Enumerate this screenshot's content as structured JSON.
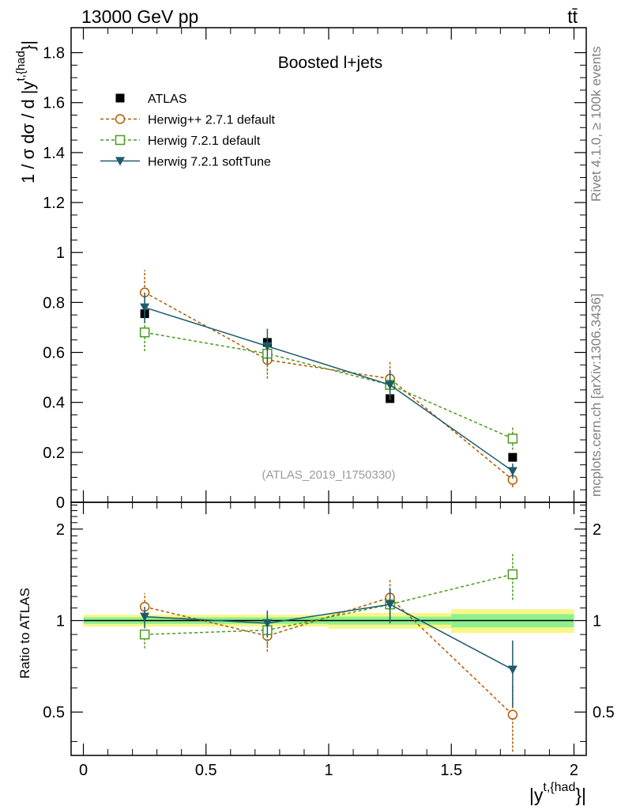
{
  "header": {
    "energy_label": "13000 GeV pp",
    "process_label": "tt̄"
  },
  "side_labels": {
    "rivet": "Rivet 4.1.0, ≥ 100k events",
    "site": "mcplots.cern.ch [arXiv:1306.3436]"
  },
  "chart_data": [
    {
      "type": "line",
      "panel": "main",
      "title": "Boosted l+jets",
      "analysis_label": "(ATLAS_2019_I1750330)",
      "xlabel_main": "|y",
      "xlabel_sup": "t,{had",
      "xlabel_end": "}|",
      "ylabel_main": "1 / σ dσ / d |y",
      "ylabel_sup": "t,{had",
      "ylabel_end": "}|",
      "xlim": [
        -0.05,
        2.05
      ],
      "ylim": [
        0,
        1.9
      ],
      "xticks": [
        0,
        0.5,
        1,
        1.5,
        2
      ],
      "xtick_labels": [
        "0",
        "0.5",
        "1",
        "1.5",
        "2"
      ],
      "yticks": [
        0,
        0.2,
        0.4,
        0.6,
        0.8,
        1,
        1.2,
        1.4,
        1.6,
        1.8
      ],
      "ytick_labels": [
        "0",
        "0.2",
        "0.4",
        "0.6",
        "0.8",
        "1",
        "1.2",
        "1.4",
        "1.6",
        "1.8"
      ],
      "bin_edges": [
        0,
        0.5,
        1,
        1.5,
        2
      ],
      "x": [
        0.25,
        0.75,
        1.25,
        1.75
      ],
      "series": [
        {
          "name": "ATLAS",
          "marker": "square-filled",
          "color": "#000000",
          "values": [
            0.755,
            0.64,
            0.415,
            0.18
          ],
          "errors": [
            0.02,
            0.02,
            0.015,
            0.01
          ]
        },
        {
          "name": "Herwig++ 2.7.1 default",
          "marker": "circle-open",
          "color": "#b05a00",
          "dashed": true,
          "values": [
            0.84,
            0.57,
            0.495,
            0.09
          ],
          "errors": [
            0.09,
            0.075,
            0.07,
            0.03
          ]
        },
        {
          "name": "Herwig 7.2.1 default",
          "marker": "square-open",
          "color": "#4a9a1e",
          "dashed": true,
          "values": [
            0.68,
            0.595,
            0.47,
            0.255
          ],
          "errors": [
            0.075,
            0.07,
            0.06,
            0.045
          ]
        },
        {
          "name": "Herwig 7.2.1 softTune",
          "marker": "triangle-down-filled",
          "color": "#1e5a6e",
          "dashed": false,
          "values": [
            0.78,
            0.625,
            0.47,
            0.125
          ],
          "errors": [
            0.06,
            0.07,
            0.06,
            0.03
          ]
        }
      ]
    },
    {
      "type": "line",
      "panel": "ratio",
      "ylabel": "Ratio to ATLAS",
      "xlabel_main": "|y",
      "xlabel_sup": "t,{had",
      "xlabel_end": "}|",
      "scale": "log",
      "ylim": [
        0.36,
        2.45
      ],
      "yticks": [
        0.5,
        1,
        2
      ],
      "ytick_labels": [
        "0.5",
        "1",
        "2"
      ],
      "xticks": [
        0,
        0.5,
        1,
        1.5,
        2
      ],
      "xtick_labels": [
        "0",
        "0.5",
        "1",
        "1.5",
        "2"
      ],
      "reference_band": {
        "edges": [
          0,
          0.5,
          1,
          1.5,
          2
        ],
        "inner": [
          0.025,
          0.025,
          0.03,
          0.05
        ],
        "outer": [
          0.045,
          0.045,
          0.06,
          0.09
        ],
        "inner_color": "#8ff08f",
        "outer_color": "#f7f78a"
      },
      "x": [
        0.25,
        0.75,
        1.25,
        1.75
      ],
      "series": [
        {
          "name": "Herwig++ 2.7.1 default",
          "marker": "circle-open",
          "color": "#b05a00",
          "dashed": true,
          "values": [
            1.11,
            0.89,
            1.19,
            0.49
          ],
          "errors": [
            0.12,
            0.1,
            0.17,
            0.12
          ]
        },
        {
          "name": "Herwig 7.2.1 default",
          "marker": "square-open",
          "color": "#4a9a1e",
          "dashed": true,
          "values": [
            0.9,
            0.93,
            1.13,
            1.42
          ],
          "errors": [
            0.09,
            0.1,
            0.15,
            0.25
          ]
        },
        {
          "name": "Herwig 7.2.1 softTune",
          "marker": "triangle-down-filled",
          "color": "#1e5a6e",
          "dashed": false,
          "values": [
            1.03,
            0.98,
            1.13,
            0.69
          ],
          "errors": [
            0.08,
            0.1,
            0.15,
            0.17
          ]
        }
      ]
    }
  ]
}
